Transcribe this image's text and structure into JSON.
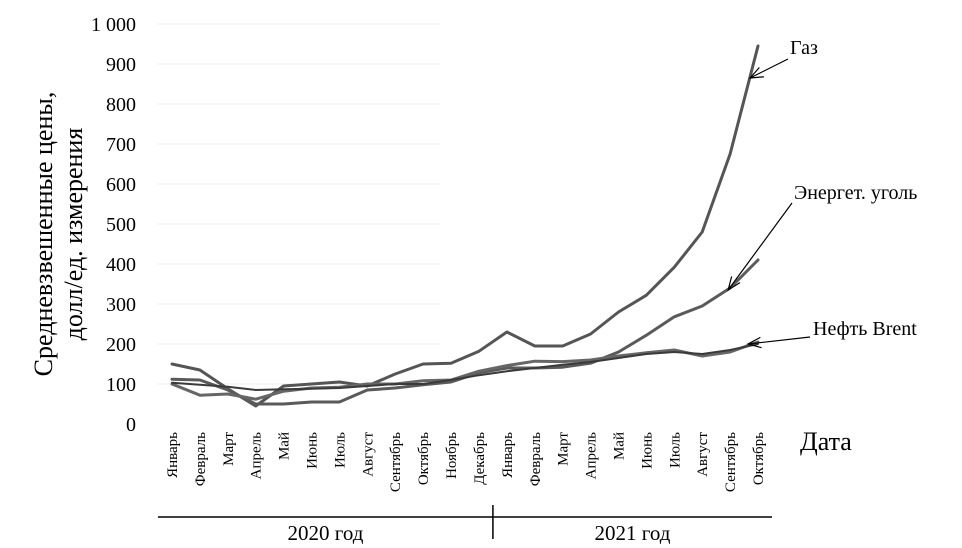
{
  "chart_data": {
    "type": "line",
    "title": "",
    "ylabel_lines": [
      "Средневзвешенные цены,",
      "долл/ед. измерения"
    ],
    "xlabel": "Дата",
    "ylim": [
      0,
      1000
    ],
    "yticks": [
      0,
      100,
      200,
      300,
      400,
      500,
      600,
      700,
      800,
      900,
      1000
    ],
    "ytick_labels": [
      "0",
      "100",
      "200",
      "300",
      "400",
      "500",
      "600",
      "700",
      "800",
      "900",
      "1 000"
    ],
    "grid": true,
    "legend": "none",
    "x": [
      "Январь",
      "Февраль",
      "Март",
      "Апрель",
      "Май",
      "Июнь",
      "Июль",
      "Август",
      "Сентябрь",
      "Октябрь",
      "Ноябрь",
      "Декабрь",
      "Январь",
      "Февраль",
      "Март",
      "Апрель",
      "Май",
      "Июнь",
      "Июль",
      "Август",
      "Сентябрь",
      "Октябрь"
    ],
    "year_groups": [
      {
        "label": "2020 год",
        "months": 12
      },
      {
        "label": "2021 год",
        "months": 10
      }
    ],
    "series": [
      {
        "name": "Газ",
        "values": [
          150,
          135,
          88,
          45,
          95,
          100,
          105,
          95,
          125,
          150,
          152,
          182,
          230,
          195,
          195,
          225,
          280,
          322,
          392,
          480,
          675,
          945
        ]
      },
      {
        "name": "Энергет. уголь",
        "values": [
          112,
          110,
          85,
          50,
          50,
          55,
          55,
          85,
          90,
          98,
          105,
          128,
          140,
          140,
          142,
          152,
          180,
          222,
          268,
          295,
          340,
          410
        ]
      },
      {
        "name": "Нефть Brent",
        "values": [
          100,
          72,
          75,
          62,
          82,
          90,
          92,
          100,
          100,
          108,
          110,
          132,
          146,
          157,
          156,
          160,
          170,
          178,
          185,
          170,
          180,
          205
        ]
      },
      {
        "name": "",
        "values": [
          103,
          98,
          93,
          85,
          87,
          88,
          90,
          95,
          100,
          100,
          110,
          122,
          132,
          140,
          148,
          155,
          165,
          175,
          180,
          175,
          185,
          200
        ]
      }
    ],
    "annotations": [
      {
        "text": "Газ",
        "series": "Газ"
      },
      {
        "text": "Энергет. уголь",
        "series": "Энергет. уголь"
      },
      {
        "text": "Нефть Brent",
        "series": "Нефть Brent"
      }
    ]
  }
}
